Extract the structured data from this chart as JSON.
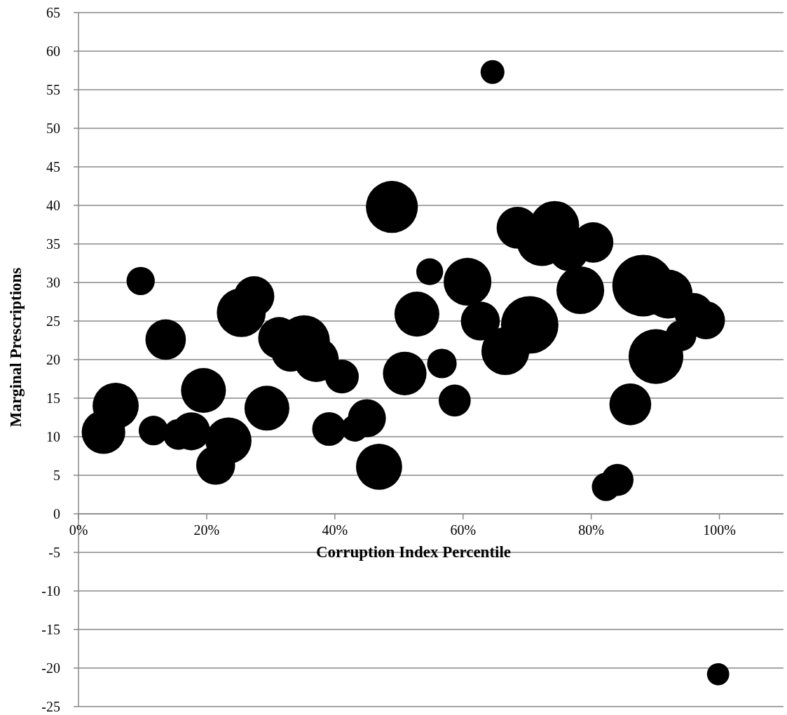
{
  "chart_data": {
    "type": "bubble",
    "xlabel": "Corruption Index Percentile",
    "ylabel": "Marginal Prescriptions",
    "x": [
      0.039,
      0.058,
      0.097,
      0.117,
      0.136,
      0.156,
      0.176,
      0.195,
      0.214,
      0.234,
      0.254,
      0.274,
      0.294,
      0.313,
      0.331,
      0.352,
      0.371,
      0.391,
      0.411,
      0.431,
      0.45,
      0.469,
      0.489,
      0.509,
      0.528,
      0.548,
      0.567,
      0.587,
      0.607,
      0.627,
      0.646,
      0.666,
      0.685,
      0.704,
      0.723,
      0.743,
      0.765,
      0.783,
      0.803,
      0.823,
      0.841,
      0.861,
      0.881,
      0.901,
      0.92,
      0.94,
      0.96,
      0.979,
      0.998
    ],
    "values": [
      10.6,
      14.0,
      30.2,
      10.8,
      22.6,
      10.3,
      10.7,
      16.0,
      6.3,
      9.5,
      26.1,
      28.2,
      13.7,
      22.8,
      20.9,
      22.4,
      20.0,
      11.0,
      17.8,
      11.1,
      12.4,
      6.1,
      39.8,
      18.2,
      25.9,
      31.4,
      19.5,
      14.7,
      30.1,
      25.0,
      57.3,
      21.1,
      37.1,
      24.5,
      35.4,
      37.4,
      34.0,
      29.0,
      35.2,
      3.5,
      4.4,
      14.2,
      29.6,
      20.4,
      28.5,
      23.1,
      26.1,
      25.1,
      -20.8
    ],
    "sizes": [
      0.5,
      0.56,
      0.21,
      0.23,
      0.43,
      0.25,
      0.38,
      0.53,
      0.4,
      0.56,
      0.63,
      0.43,
      0.53,
      0.46,
      0.38,
      0.7,
      0.53,
      0.3,
      0.3,
      0.19,
      0.38,
      0.56,
      0.71,
      0.5,
      0.53,
      0.19,
      0.23,
      0.27,
      0.6,
      0.4,
      0.15,
      0.6,
      0.46,
      0.87,
      0.67,
      0.63,
      0.4,
      0.6,
      0.43,
      0.21,
      0.27,
      0.46,
      1,
      0.79,
      0.63,
      0.25,
      0.4,
      0.38,
      0.13
    ],
    "color": "#000000",
    "xlim": [
      0,
      1.1
    ],
    "xticks": [
      {
        "value": 0,
        "label": "0%"
      },
      {
        "value": 0.2,
        "label": "20%"
      },
      {
        "value": 0.4,
        "label": "40%"
      },
      {
        "value": 0.6,
        "label": "60%"
      },
      {
        "value": 0.8,
        "label": "80%"
      },
      {
        "value": 1,
        "label": "100%"
      }
    ],
    "ylim": [
      -25,
      65
    ],
    "yticks": [
      -25,
      -20,
      -15,
      -10,
      -5,
      0,
      5,
      10,
      15,
      20,
      25,
      30,
      35,
      40,
      45,
      50,
      55,
      60,
      65
    ],
    "grid": "y"
  }
}
